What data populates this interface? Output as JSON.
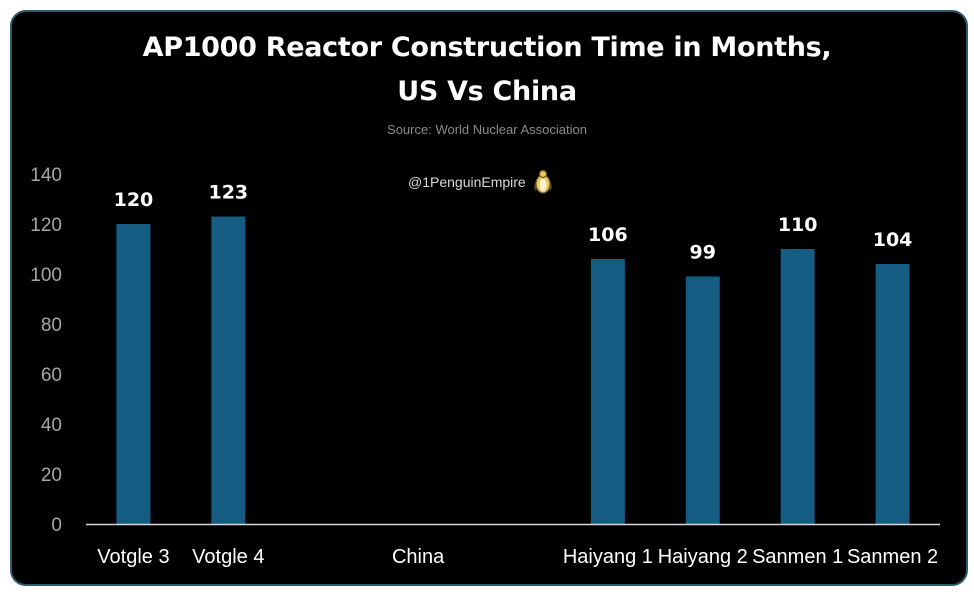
{
  "chart_data": {
    "type": "bar",
    "title": "AP1000 Reactor Construction Time in Months,",
    "title_line2": "US Vs China",
    "subtitle": "Source: World Nuclear Association",
    "watermark": "@1PenguinEmpire",
    "categories": [
      "Votgle 3",
      "Votgle 4",
      "",
      "China",
      "",
      "Haiyang 1",
      "Haiyang 2",
      "Sanmen 1",
      "Sanmen 2"
    ],
    "values": [
      120,
      123,
      null,
      null,
      null,
      106,
      99,
      110,
      104
    ],
    "ylim": [
      0,
      140
    ],
    "yticks": [
      0,
      20,
      40,
      60,
      80,
      100,
      120,
      140
    ],
    "xlabel": "",
    "ylabel": "",
    "grid": false,
    "bar_color": "#155c82",
    "axis_color": "#d9d9d9"
  }
}
